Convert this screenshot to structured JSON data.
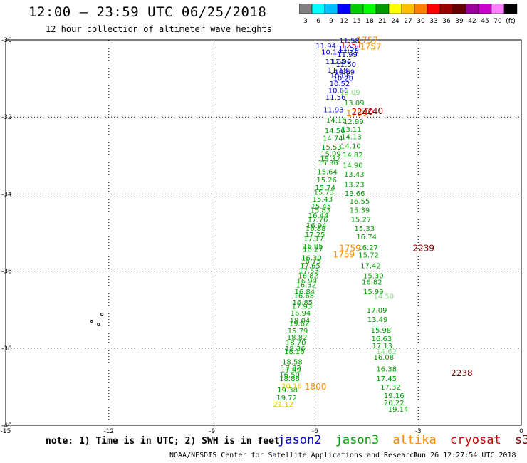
{
  "header": {
    "title": "12:00 – 23:59 UTC 06/25/2018",
    "subtitle": "12 hour collection of altimeter wave heights"
  },
  "colorbar": {
    "colors": [
      "#808080",
      "#00ffff",
      "#00bfff",
      "#0000ff",
      "#00cc00",
      "#00ff00",
      "#009900",
      "#ffff00",
      "#ffbf00",
      "#ff8000",
      "#ff0000",
      "#990000",
      "#660000",
      "#990099",
      "#cc00cc",
      "#ff80ff",
      "#000000"
    ],
    "labels": [
      "3",
      "6",
      "9",
      "12",
      "15",
      "18",
      "21",
      "24",
      "27",
      "30",
      "33",
      "36",
      "39",
      "42",
      "45",
      "70",
      "(ft)"
    ]
  },
  "note": "note: 1) Time is in UTC; 2) SWH is in feet",
  "legend": [
    {
      "name": "jason2",
      "color": "#0000cc"
    },
    {
      "name": "jason3",
      "color": "#00a000"
    },
    {
      "name": "altika",
      "color": "#ff8c00"
    },
    {
      "name": "cryosat",
      "color": "#cc0000"
    },
    {
      "name": "s3a",
      "color": "#800000"
    }
  ],
  "footer": {
    "credit": "NOAA/NESDIS Center for Satellite Applications and Research",
    "generated": "Jun 26 12:27:54 UTC 2018"
  },
  "chart_data": {
    "type": "scatter",
    "xlim": [
      -15,
      0
    ],
    "ylim": [
      -40,
      -30
    ],
    "x_ticks": [
      -15,
      -12,
      -9,
      -6,
      -3,
      0
    ],
    "y_ticks": [
      -30,
      -32,
      -34,
      -36,
      -38,
      -40
    ],
    "grid": true,
    "series": [
      {
        "name": "jason2",
        "color": "#0000cc",
        "points": [
          {
            "x": -5.3,
            "y": -30.08,
            "label": "11.58"
          },
          {
            "x": -5.98,
            "y": -30.22,
            "label": "11.94"
          },
          {
            "x": -5.32,
            "y": -30.28,
            "label": "11.52"
          },
          {
            "x": -5.32,
            "y": -30.33,
            "label": "11.70"
          },
          {
            "x": -5.82,
            "y": -30.38,
            "label": "10.14"
          },
          {
            "x": -5.36,
            "y": -30.44,
            "label": "11.99"
          },
          {
            "x": -5.7,
            "y": -30.63,
            "label": "11.05"
          },
          {
            "x": -5.54,
            "y": -30.63,
            "label": "11.06"
          },
          {
            "x": -5.4,
            "y": -30.7,
            "label": "11.50"
          },
          {
            "x": -5.64,
            "y": -30.85,
            "label": "11.18"
          },
          {
            "x": -5.44,
            "y": -30.9,
            "label": "10.69"
          },
          {
            "x": -5.56,
            "y": -31.0,
            "label": "10.06"
          },
          {
            "x": -5.48,
            "y": -31.06,
            "label": "10.28"
          },
          {
            "x": -5.58,
            "y": -31.2,
            "label": "10.52"
          },
          {
            "x": -5.62,
            "y": -31.38,
            "label": "10.66"
          },
          {
            "x": -5.7,
            "y": -31.55,
            "label": "11.56"
          },
          {
            "x": -5.76,
            "y": -31.88,
            "label": "11.93"
          }
        ]
      },
      {
        "name": "jason3",
        "color": "#00a000",
        "points": [
          {
            "x": -5.16,
            "y": -31.7,
            "label": "13.09"
          },
          {
            "x": -5.68,
            "y": -32.14,
            "label": "14.16"
          },
          {
            "x": -5.18,
            "y": -32.18,
            "label": "12.99"
          },
          {
            "x": -5.24,
            "y": -32.38,
            "label": "13.11"
          },
          {
            "x": -5.72,
            "y": -32.42,
            "label": "14.56"
          },
          {
            "x": -5.78,
            "y": -32.62,
            "label": "14.74"
          },
          {
            "x": -5.24,
            "y": -32.58,
            "label": "14.13"
          },
          {
            "x": -5.26,
            "y": -32.82,
            "label": "14.10"
          },
          {
            "x": -5.82,
            "y": -32.85,
            "label": "15.53"
          },
          {
            "x": -5.84,
            "y": -33.02,
            "label": "15.09"
          },
          {
            "x": -5.2,
            "y": -33.05,
            "label": "14.82"
          },
          {
            "x": -5.86,
            "y": -33.15,
            "label": "15.32"
          },
          {
            "x": -5.92,
            "y": -33.25,
            "label": "15.36"
          },
          {
            "x": -5.2,
            "y": -33.32,
            "label": "14.90"
          },
          {
            "x": -5.94,
            "y": -33.48,
            "label": "15.64"
          },
          {
            "x": -5.16,
            "y": -33.55,
            "label": "13.43"
          },
          {
            "x": -5.96,
            "y": -33.7,
            "label": "15.26"
          },
          {
            "x": -5.16,
            "y": -33.82,
            "label": "13.23"
          },
          {
            "x": -6.0,
            "y": -33.9,
            "label": "15.74"
          },
          {
            "x": -6.04,
            "y": -34.02,
            "label": "15.73"
          },
          {
            "x": -5.14,
            "y": -34.05,
            "label": "13.66"
          },
          {
            "x": -6.08,
            "y": -34.2,
            "label": "15.43"
          },
          {
            "x": -5.0,
            "y": -34.25,
            "label": "16.55"
          },
          {
            "x": -6.12,
            "y": -34.38,
            "label": "15.45"
          },
          {
            "x": -6.14,
            "y": -34.48,
            "label": "15.83"
          },
          {
            "x": -5.0,
            "y": -34.48,
            "label": "15.39"
          },
          {
            "x": -6.2,
            "y": -34.62,
            "label": "16.44"
          },
          {
            "x": -6.22,
            "y": -34.72,
            "label": "17.76"
          },
          {
            "x": -4.96,
            "y": -34.72,
            "label": "15.27"
          },
          {
            "x": -6.26,
            "y": -34.88,
            "label": "16.94"
          },
          {
            "x": -6.28,
            "y": -34.95,
            "label": "16.88"
          },
          {
            "x": -4.86,
            "y": -34.95,
            "label": "15.33"
          },
          {
            "x": -6.3,
            "y": -35.12,
            "label": "17.25"
          },
          {
            "x": -6.34,
            "y": -35.22,
            "label": "17.17"
          },
          {
            "x": -4.8,
            "y": -35.18,
            "label": "16.74"
          },
          {
            "x": -6.36,
            "y": -35.42,
            "label": "16.85"
          },
          {
            "x": -6.36,
            "y": -35.5,
            "label": "16.27"
          },
          {
            "x": -4.76,
            "y": -35.45,
            "label": "16.27"
          },
          {
            "x": -6.4,
            "y": -35.72,
            "label": "16.30"
          },
          {
            "x": -4.74,
            "y": -35.65,
            "label": "15.72"
          },
          {
            "x": -6.42,
            "y": -35.8,
            "label": "16.75"
          },
          {
            "x": -6.44,
            "y": -35.92,
            "label": "17.65"
          },
          {
            "x": -4.68,
            "y": -35.92,
            "label": "17.42"
          },
          {
            "x": -6.48,
            "y": -36.05,
            "label": "17.53"
          },
          {
            "x": -6.5,
            "y": -36.18,
            "label": "16.82"
          },
          {
            "x": -4.6,
            "y": -36.18,
            "label": "15.30"
          },
          {
            "x": -6.54,
            "y": -36.32,
            "label": "16.99"
          },
          {
            "x": -6.56,
            "y": -36.42,
            "label": "16.32"
          },
          {
            "x": -4.64,
            "y": -36.35,
            "label": "16.82"
          },
          {
            "x": -6.6,
            "y": -36.6,
            "label": "16.84"
          },
          {
            "x": -6.62,
            "y": -36.7,
            "label": "16.68"
          },
          {
            "x": -4.6,
            "y": -36.6,
            "label": "15.99"
          },
          {
            "x": -6.66,
            "y": -36.88,
            "label": "16.85"
          },
          {
            "x": -6.68,
            "y": -36.98,
            "label": "17.93"
          },
          {
            "x": -4.5,
            "y": -37.08,
            "label": "17.09"
          },
          {
            "x": -6.72,
            "y": -37.15,
            "label": "16.94"
          },
          {
            "x": -6.74,
            "y": -37.35,
            "label": "18.04"
          },
          {
            "x": -4.48,
            "y": -37.32,
            "label": "13.49"
          },
          {
            "x": -6.76,
            "y": -37.42,
            "label": "19.62"
          },
          {
            "x": -6.8,
            "y": -37.62,
            "label": "15.79"
          },
          {
            "x": -4.38,
            "y": -37.6,
            "label": "15.98"
          },
          {
            "x": -6.82,
            "y": -37.78,
            "label": "18.82"
          },
          {
            "x": -4.36,
            "y": -37.82,
            "label": "16.63"
          },
          {
            "x": -6.86,
            "y": -37.92,
            "label": "18.70"
          },
          {
            "x": -6.88,
            "y": -38.08,
            "label": "18.36"
          },
          {
            "x": -4.34,
            "y": -38.0,
            "label": "17.13"
          },
          {
            "x": -6.9,
            "y": -38.15,
            "label": "18.16"
          },
          {
            "x": -6.96,
            "y": -38.42,
            "label": "18.58"
          },
          {
            "x": -4.3,
            "y": -38.3,
            "label": "16.08"
          },
          {
            "x": -7.0,
            "y": -38.58,
            "label": "17.82"
          },
          {
            "x": -7.0,
            "y": -38.62,
            "label": "17.49"
          },
          {
            "x": -4.22,
            "y": -38.6,
            "label": "16.38"
          },
          {
            "x": -7.04,
            "y": -38.75,
            "label": "16.50"
          },
          {
            "x": -7.04,
            "y": -38.85,
            "label": "18.88"
          },
          {
            "x": -4.22,
            "y": -38.85,
            "label": "17.45"
          },
          {
            "x": -4.1,
            "y": -39.08,
            "label": "17.32"
          },
          {
            "x": -7.1,
            "y": -39.15,
            "label": "19.38"
          },
          {
            "x": -4.0,
            "y": -39.3,
            "label": "19.16"
          },
          {
            "x": -7.12,
            "y": -39.35,
            "label": "19.72"
          },
          {
            "x": -4.0,
            "y": -39.48,
            "label": "20.22"
          },
          {
            "x": -3.88,
            "y": -39.65,
            "label": "19.14"
          }
        ]
      },
      {
        "name": "jason3-light",
        "color": "#7ee07e",
        "points": [
          {
            "x": -5.28,
            "y": -31.42,
            "label": "13.09"
          },
          {
            "x": -4.22,
            "y": -38.15,
            "label": "14.62"
          },
          {
            "x": -4.3,
            "y": -36.72,
            "label": "14.50"
          }
        ]
      },
      {
        "name": "altika-yellow",
        "color": "#e6c800",
        "points": [
          {
            "x": -7.22,
            "y": -39.52,
            "label": "21.12"
          },
          {
            "x": -6.98,
            "y": -39.05,
            "label": "20.16"
          }
        ]
      },
      {
        "name": "altika",
        "color": "#ff8c00",
        "points": [
          {
            "x": -4.8,
            "y": -30.08,
            "label": "1757"
          },
          {
            "x": -4.7,
            "y": -30.25,
            "label": "1757"
          },
          {
            "x": -5.1,
            "y": -31.98,
            "label": "1759"
          },
          {
            "x": -5.3,
            "y": -35.48,
            "label": "1759"
          },
          {
            "x": -5.48,
            "y": -35.65,
            "label": "1759"
          },
          {
            "x": -6.3,
            "y": -39.08,
            "label": "1800"
          }
        ]
      },
      {
        "name": "cryosat",
        "color": "#cc0000",
        "points": [
          {
            "x": -5.26,
            "y": -30.22,
            "label": "1251"
          },
          {
            "x": -4.94,
            "y": -31.94,
            "label": "2240"
          }
        ]
      },
      {
        "name": "s3a",
        "color": "#800000",
        "points": [
          {
            "x": -4.65,
            "y": -31.92,
            "label": "2240"
          },
          {
            "x": -3.16,
            "y": -35.48,
            "label": "2239"
          },
          {
            "x": -2.05,
            "y": -38.72,
            "label": "2238"
          }
        ]
      }
    ],
    "islands": [
      {
        "x": -12.2,
        "y": -37.12
      },
      {
        "x": -12.5,
        "y": -37.3
      },
      {
        "x": -12.3,
        "y": -37.38
      }
    ]
  }
}
